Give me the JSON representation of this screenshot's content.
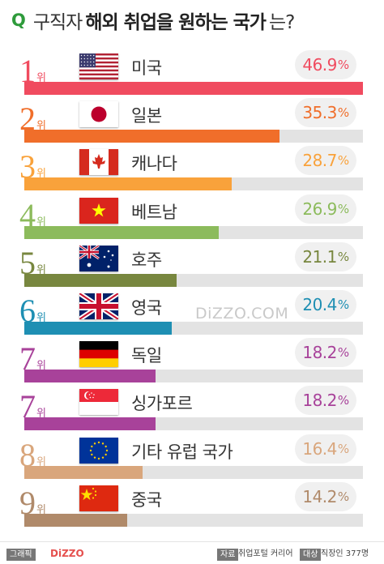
{
  "title": {
    "q": "Q",
    "pre": "구직자",
    "highlight": "해외 취업을 원하는 국가",
    "post": "는?"
  },
  "rank_suffix": "위",
  "watermark": "DiZZO.COM",
  "footer": {
    "tag_graphic": "그래픽",
    "brand": "DiZZO",
    "tag_source": "자료",
    "source": "취업포털 커리어",
    "tag_target": "대상",
    "target": "직장인 377명"
  },
  "chart_data": {
    "type": "bar",
    "orientation": "horizontal",
    "value_unit": "%",
    "xlim": [
      0,
      46.9
    ],
    "categories": [
      "미국",
      "일본",
      "캐나다",
      "베트남",
      "호주",
      "영국",
      "독일",
      "싱가포르",
      "기타 유럽 국가",
      "중국"
    ],
    "ranks": [
      "1",
      "2",
      "3",
      "4",
      "5",
      "6",
      "7",
      "7",
      "8",
      "9"
    ],
    "values": [
      46.9,
      35.3,
      28.7,
      26.9,
      21.1,
      20.4,
      18.2,
      18.2,
      16.4,
      14.2
    ],
    "value_labels": [
      "46.9",
      "35.3",
      "28.7",
      "26.9",
      "21.1",
      "20.4",
      "18.2",
      "18.2",
      "16.4",
      "14.2"
    ],
    "colors": [
      "#f04b5f",
      "#f06e2a",
      "#f9a23b",
      "#8cbb5c",
      "#78873f",
      "#1e8fb3",
      "#a8429a",
      "#a8429a",
      "#d9a67c",
      "#b08a6a"
    ],
    "flags": [
      "flag-usa-icon",
      "flag-japan-icon",
      "flag-canada-icon",
      "flag-vietnam-icon",
      "flag-australia-icon",
      "flag-uk-icon",
      "flag-germany-icon",
      "flag-singapore-icon",
      "flag-eu-icon",
      "flag-china-icon"
    ]
  }
}
